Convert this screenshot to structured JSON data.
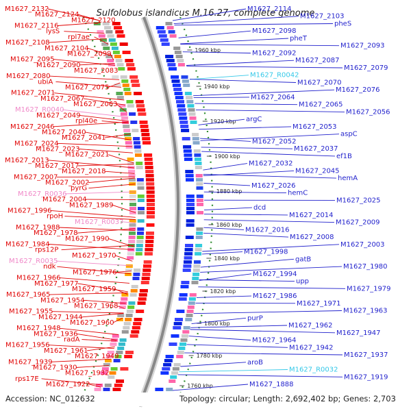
{
  "title": "Sulfolobus islandicus M.16.27, complete genome",
  "footer": {
    "accession": "Accession: NC_012632",
    "summary": "Topology: circular; Length: 2,692,402 bp; Genes: 2,703"
  },
  "colors": {
    "left_labels": "#e00000",
    "right_labels": "#1f1fcc",
    "rna_left": "#f088c8",
    "rna_right": "#33c8e8",
    "backbone": "#888888",
    "tick_marks": "#2e8b2e"
  },
  "ticks": [
    "1960 kbp",
    "1940 kbp",
    "1920 kbp",
    "1900 kbp",
    "1880 kbp",
    "1860 kbp",
    "1840 kbp",
    "1820 kbp",
    "1800 kbp",
    "1780 kbp",
    "1760 kbp"
  ],
  "left_labels": [
    "M1627_2132",
    "M1627_2124",
    "M1627_2120",
    "M1627_2116",
    "lysS",
    "rpl7ae",
    "M1627_2108",
    "M1627_2104",
    "M1627_2099",
    "M1627_2095",
    "M1627_2090",
    "M1627_2083",
    "M1627_2080",
    "ubiA",
    "M1627_2075",
    "M1627_2071",
    "M1627_2067",
    "M1627_2063",
    "M1627_R0040",
    "M1627_2049",
    "rpl40e",
    "M1627_2046",
    "M1627_2040",
    "M1627_2041",
    "M1627_2024",
    "M1627_2023",
    "M1627_2021",
    "M1627_2013",
    "M1627_2017",
    "M1627_2018",
    "M1627_2007",
    "M1627_2002",
    "pyrG",
    "M1627_R0036",
    "M1627_2004",
    "M1627_1989",
    "M1627_1996",
    "rpoH",
    "M1627_R0037",
    "M1627_1988",
    "M1627_1978",
    "M1627_1990",
    "M1627_1984",
    "rps12P",
    "M1627_1970",
    "M1627_R0035",
    "ndk",
    "M1627_1976",
    "M1627_1966",
    "M1627_1977",
    "M1627_1959",
    "M1627_1965",
    "M1627_1954",
    "M1627_1968",
    "M1627_1955",
    "M1627_1944",
    "M1627_1960",
    "M1627_1948",
    "M1627_1936",
    "radA",
    "M1627_1956",
    "M1627_1961",
    "M1627_1949",
    "M1627_1939",
    "M1627_1930",
    "M1627_1932",
    "rps17E",
    "M1627_1922"
  ],
  "right_labels": [
    "M1627_2114",
    "M1627_2103",
    "pheS",
    "M1627_2098",
    "pheT",
    "M1627_2093",
    "M1627_2092",
    "M1627_2087",
    "M1627_2079",
    "M1627_R0042",
    "M1627_2070",
    "M1627_2076",
    "M1627_2064",
    "M1627_2065",
    "M1627_2056",
    "argC",
    "M1627_2053",
    "aspC",
    "M1627_2052",
    "M1627_2037",
    "ef1B",
    "M1627_2032",
    "M1627_2045",
    "hemA",
    "M1627_2026",
    "hemC",
    "M1627_2025",
    "dcd",
    "M1627_2014",
    "M1627_2009",
    "M1627_2016",
    "M1627_2008",
    "M1627_2003",
    "M1627_1998",
    "gatB",
    "M1627_1980",
    "M1627_1994",
    "upp",
    "M1627_1979",
    "M1627_1986",
    "M1627_1971",
    "M1627_1963",
    "purP",
    "M1627_1962",
    "M1627_1947",
    "M1627_1964",
    "M1627_1942",
    "M1627_1937",
    "aroB",
    "M1627_R0032",
    "M1627_1919",
    "M1627_1888"
  ]
}
